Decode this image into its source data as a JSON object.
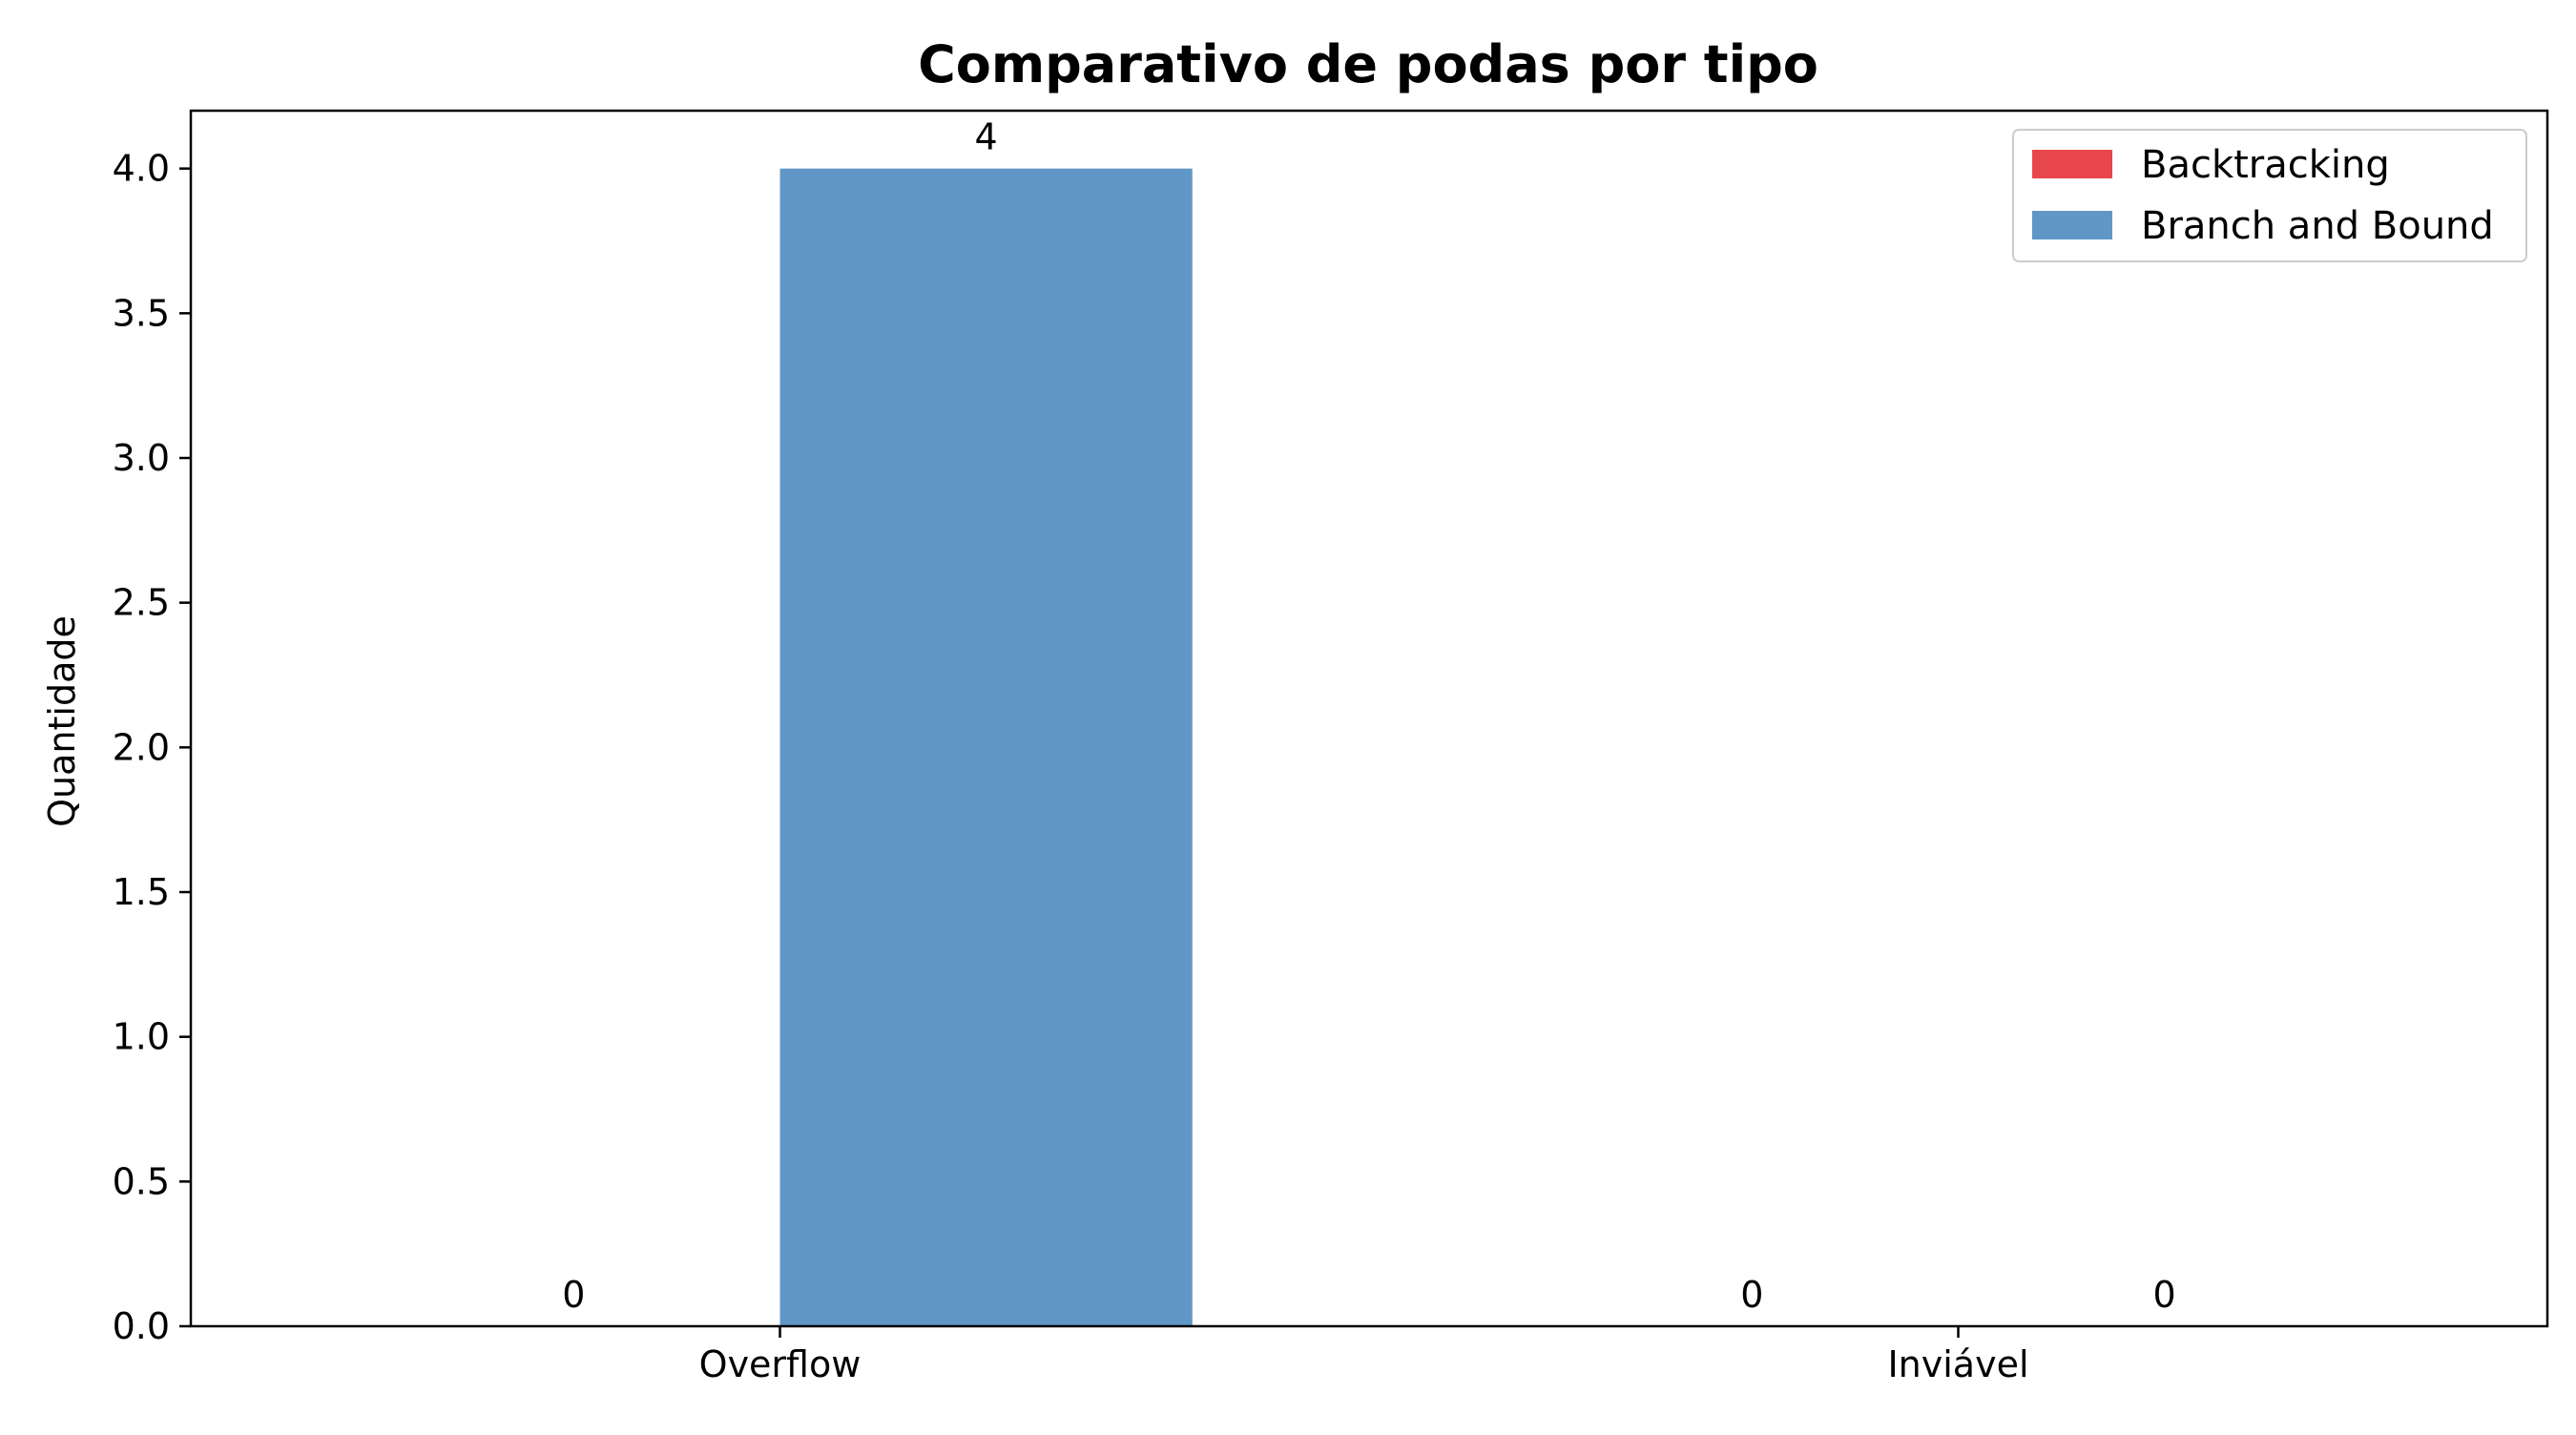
{
  "chart_data": {
    "type": "bar",
    "title": "Comparativo de podas por tipo",
    "xlabel": "",
    "ylabel": "Quantidade",
    "categories": [
      "Overflow",
      "Inviável"
    ],
    "series": [
      {
        "name": "Backtracking",
        "values": [
          0,
          0
        ],
        "color": "#e8474c"
      },
      {
        "name": "Branch and Bound",
        "values": [
          4,
          0
        ],
        "color": "#6197c6"
      }
    ],
    "ylim": [
      0,
      4.2
    ],
    "yticks": [
      0.0,
      0.5,
      1.0,
      1.5,
      2.0,
      2.5,
      3.0,
      3.5,
      4.0
    ],
    "ytick_labels": [
      "0.0",
      "0.5",
      "1.0",
      "1.5",
      "2.0",
      "2.5",
      "3.0",
      "3.5",
      "4.0"
    ],
    "bar_labels": [
      [
        "0",
        "0"
      ],
      [
        "4",
        "0"
      ]
    ],
    "grid": false,
    "legend_position": "top-right"
  }
}
